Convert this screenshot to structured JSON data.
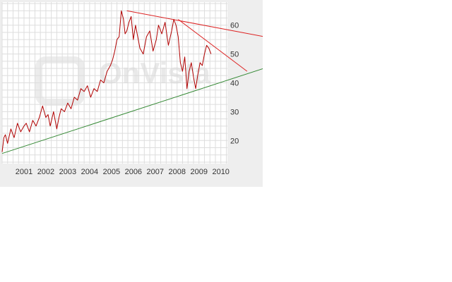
{
  "watermark": {
    "text": "OnVista"
  },
  "chart_data": {
    "type": "line",
    "title": "",
    "xlabel": "",
    "ylabel": "",
    "grid": true,
    "xlim": [
      2000.0,
      2010.3
    ],
    "ylim": [
      12,
      68
    ],
    "x_ticks": [
      "2001",
      "2002",
      "2003",
      "2004",
      "2005",
      "2006",
      "2007",
      "2008",
      "2009",
      "2010"
    ],
    "y_ticks": [
      20,
      30,
      40,
      50,
      60
    ],
    "colors": {
      "price": "#b00000",
      "resistance": "#dd2222",
      "support": "#338833"
    },
    "series": [
      {
        "x": [
          2000.0,
          2000.08,
          2000.15,
          2000.25,
          2000.4,
          2000.55,
          2000.7,
          2000.85,
          2001.0,
          2001.1,
          2001.25,
          2001.4,
          2001.55,
          2001.7,
          2001.85,
          2002.0,
          2002.1,
          2002.2,
          2002.35,
          2002.5,
          2002.6,
          2002.7,
          2002.85,
          2003.0,
          2003.15,
          2003.3,
          2003.45,
          2003.6,
          2003.75,
          2003.9,
          2004.05,
          2004.2,
          2004.35,
          2004.5,
          2004.65,
          2004.8,
          2004.95,
          2005.05,
          2005.15,
          2005.25,
          2005.35,
          2005.45,
          2005.55,
          2005.62,
          2005.7,
          2005.8,
          2005.9,
          2006.0,
          2006.1,
          2006.2,
          2006.3,
          2006.45,
          2006.6,
          2006.75,
          2006.9,
          2007.05,
          2007.15,
          2007.3,
          2007.45,
          2007.6,
          2007.75,
          2007.85,
          2007.95,
          2008.05,
          2008.15,
          2008.25,
          2008.35,
          2008.45,
          2008.55,
          2008.65,
          2008.75,
          2008.85,
          2008.95,
          2009.05,
          2009.15,
          2009.25,
          2009.35,
          2009.45,
          2009.55
        ],
        "values": [
          16,
          21,
          22,
          19,
          24,
          21,
          26,
          23,
          25,
          26,
          23,
          27,
          25,
          28,
          32,
          28,
          29,
          25,
          30,
          24,
          28,
          31,
          30,
          33,
          31,
          35,
          34,
          38,
          37,
          39,
          35,
          38,
          37,
          41,
          40,
          44,
          46,
          48,
          51,
          55,
          56,
          65,
          62,
          57,
          58,
          61,
          63,
          55,
          60,
          56,
          52,
          50,
          56,
          58,
          51,
          55,
          60,
          57,
          61,
          53,
          58,
          62,
          60,
          56,
          47,
          44,
          49,
          38,
          44,
          47,
          42,
          38,
          43,
          47,
          46,
          50,
          53,
          52,
          50
        ]
      }
    ],
    "trendlines": [
      {
        "kind": "resistance",
        "x": [
          2005.7,
          2014.8
        ],
        "values": [
          65,
          52
        ]
      },
      {
        "kind": "resistance",
        "x": [
          2008.05,
          2011.2
        ],
        "values": [
          62,
          44
        ]
      },
      {
        "kind": "support",
        "x": [
          2000.0,
          2014.8
        ],
        "values": [
          15.5,
          52
        ]
      }
    ]
  }
}
